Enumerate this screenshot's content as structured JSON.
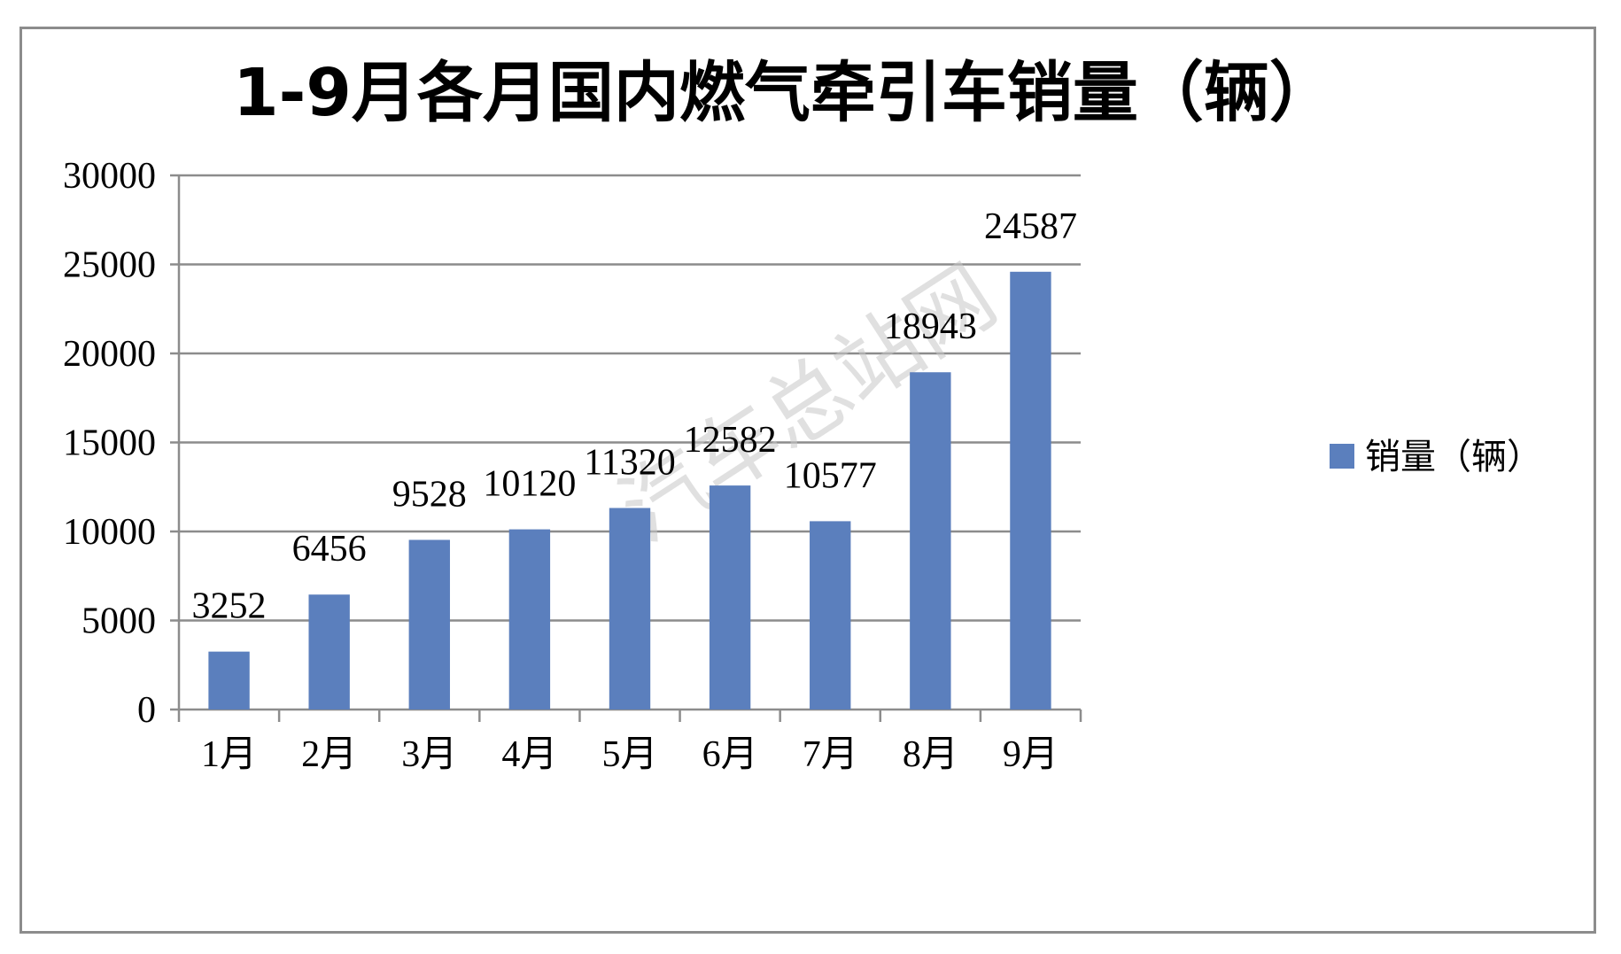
{
  "chart_data": {
    "type": "bar",
    "title": "1-9月各月国内燃气牵引车销量（辆）",
    "categories": [
      "1月",
      "2月",
      "3月",
      "4月",
      "5月",
      "6月",
      "7月",
      "8月",
      "9月"
    ],
    "series": [
      {
        "name": "销量（辆）",
        "values": [
          3252,
          6456,
          9528,
          10120,
          11320,
          12582,
          10577,
          18943,
          24587
        ]
      }
    ],
    "ylim": [
      0,
      30000
    ],
    "yticks": [
      0,
      5000,
      10000,
      15000,
      20000,
      25000,
      30000
    ],
    "xlabel": "",
    "ylabel": "",
    "grid": true,
    "data_labels": true,
    "legend_position": "right",
    "colors": {
      "bar": "#5b7fbd",
      "grid": "#8c8c8c",
      "axis": "#8c8c8c"
    }
  },
  "watermark": "汽车总站网"
}
